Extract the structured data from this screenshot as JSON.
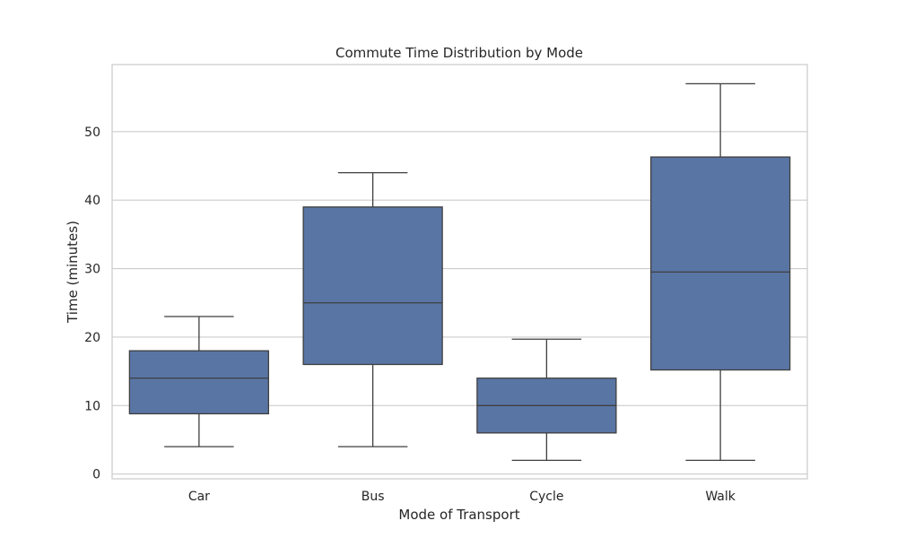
{
  "chart_data": {
    "type": "box",
    "title": "Commute Time Distribution by Mode",
    "xlabel": "Mode of Transport",
    "ylabel": "Time (minutes)",
    "categories": [
      "Car",
      "Bus",
      "Cycle",
      "Walk"
    ],
    "boxes": [
      {
        "category": "Car",
        "whisker_low": 4,
        "q1": 8.8,
        "median": 14,
        "q3": 18,
        "whisker_high": 23
      },
      {
        "category": "Bus",
        "whisker_low": 4,
        "q1": 16,
        "median": 25,
        "q3": 39,
        "whisker_high": 44
      },
      {
        "category": "Cycle",
        "whisker_low": 2,
        "q1": 6,
        "median": 10,
        "q3": 14,
        "whisker_high": 19.7
      },
      {
        "category": "Walk",
        "whisker_low": 2,
        "q1": 15.2,
        "median": 29.5,
        "q3": 46.3,
        "whisker_high": 57
      }
    ],
    "yticks": [
      0,
      10,
      20,
      30,
      40,
      50
    ],
    "ylim": [
      -0.7,
      59.8
    ],
    "grid": "horizontal",
    "colors": {
      "box_fill": "#5975a4",
      "line": "#3f3f3f",
      "grid": "#cccccc",
      "frame": "#cccccc"
    }
  }
}
